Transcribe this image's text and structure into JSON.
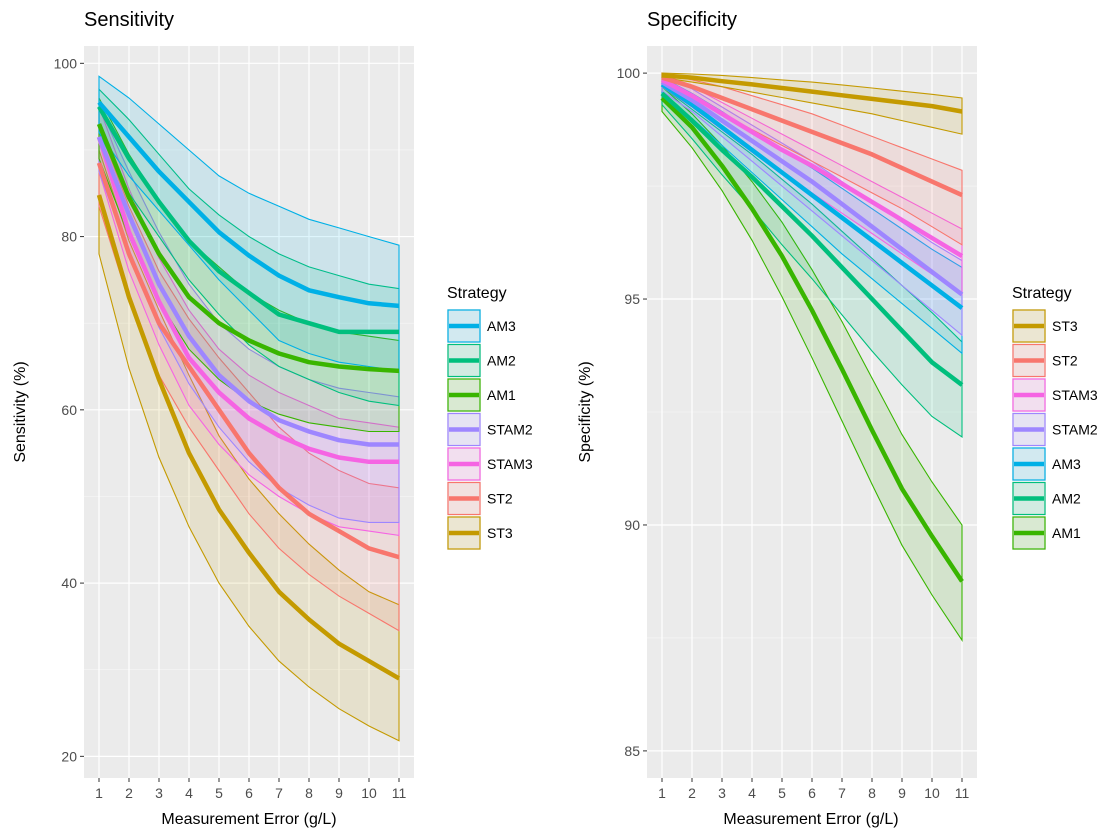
{
  "chart_data": [
    {
      "type": "line",
      "title": "Sensitivity",
      "xlabel": "Measurement Error (g/L)",
      "ylabel": "Sensitivity (%)",
      "x": [
        1,
        2,
        3,
        4,
        5,
        6,
        7,
        8,
        9,
        10,
        11
      ],
      "xlim": [
        0.5,
        11.5
      ],
      "ylim": [
        17.5,
        102
      ],
      "yticks": [
        20,
        40,
        60,
        80,
        100
      ],
      "grid": true,
      "legend_title": "Strategy",
      "legend_position": "right",
      "series": [
        {
          "name": "AM3",
          "color": "#00B0E6",
          "values": [
            95.5,
            91.5,
            87.5,
            84.0,
            80.5,
            77.8,
            75.5,
            73.8,
            73.0,
            72.3,
            72.0
          ],
          "lower": [
            92.0,
            87.0,
            83.0,
            79.0,
            75.0,
            71.5,
            68.0,
            66.5,
            65.5,
            65.0,
            64.5
          ],
          "upper": [
            98.5,
            96.0,
            93.0,
            90.0,
            87.0,
            85.0,
            83.5,
            82.0,
            81.0,
            80.0,
            79.0
          ]
        },
        {
          "name": "AM2",
          "color": "#00BF7D",
          "values": [
            95.0,
            89.0,
            84.0,
            79.5,
            76.0,
            73.5,
            71.0,
            70.0,
            69.0,
            69.0,
            69.0
          ],
          "lower": [
            92.0,
            85.0,
            80.0,
            75.0,
            71.0,
            67.5,
            65.0,
            63.5,
            62.0,
            61.0,
            60.5
          ],
          "upper": [
            97.0,
            93.5,
            89.5,
            85.5,
            82.5,
            80.0,
            78.0,
            76.5,
            75.5,
            74.5,
            74.0
          ]
        },
        {
          "name": "AM1",
          "color": "#39B500",
          "values": [
            93.0,
            84.5,
            78.0,
            73.0,
            70.0,
            68.0,
            66.5,
            65.5,
            65.0,
            64.7,
            64.5
          ],
          "lower": [
            89.0,
            80.0,
            72.5,
            67.0,
            63.5,
            61.0,
            59.5,
            58.5,
            58.0,
            57.5,
            57.5
          ],
          "upper": [
            96.0,
            89.5,
            84.0,
            79.5,
            76.5,
            73.5,
            71.5,
            70.0,
            69.0,
            68.5,
            68.0
          ]
        },
        {
          "name": "STAM2",
          "color": "#9E86FF",
          "values": [
            91.5,
            82.5,
            74.5,
            68.5,
            64.0,
            61.0,
            58.8,
            57.5,
            56.5,
            56.0,
            56.0
          ],
          "lower": [
            87.5,
            78.0,
            69.5,
            63.0,
            58.0,
            54.0,
            51.0,
            49.0,
            47.5,
            47.0,
            47.0
          ],
          "upper": [
            95.0,
            87.5,
            80.5,
            74.5,
            70.0,
            67.0,
            65.0,
            63.5,
            62.5,
            62.0,
            61.5
          ]
        },
        {
          "name": "STAM3",
          "color": "#F564E3",
          "values": [
            91.5,
            80.5,
            72.5,
            66.0,
            62.0,
            59.0,
            57.0,
            55.5,
            54.5,
            54.0,
            54.0
          ],
          "lower": [
            87.5,
            76.0,
            67.5,
            60.5,
            56.0,
            52.5,
            50.0,
            48.0,
            46.5,
            46.0,
            45.5
          ],
          "upper": [
            95.0,
            85.5,
            77.5,
            71.5,
            67.0,
            64.0,
            62.0,
            60.5,
            59.0,
            58.5,
            58.0
          ]
        },
        {
          "name": "ST2",
          "color": "#F8766D",
          "values": [
            88.5,
            78.0,
            70.0,
            65.0,
            60.0,
            55.0,
            51.0,
            48.0,
            46.0,
            44.0,
            43.0
          ],
          "lower": [
            83.5,
            72.5,
            64.0,
            58.0,
            53.0,
            48.0,
            44.0,
            41.0,
            38.5,
            36.5,
            34.5
          ],
          "upper": [
            92.5,
            83.5,
            76.0,
            70.5,
            66.0,
            62.0,
            58.0,
            55.0,
            53.0,
            51.5,
            51.0
          ]
        },
        {
          "name": "ST3",
          "color": "#C49A00",
          "values": [
            84.8,
            73.0,
            63.5,
            55.0,
            48.5,
            43.5,
            39.0,
            35.8,
            33.0,
            31.0,
            29.0
          ],
          "lower": [
            78.0,
            64.8,
            54.5,
            46.5,
            40.0,
            35.0,
            31.0,
            28.0,
            25.5,
            23.5,
            21.8
          ],
          "upper": [
            90.0,
            79.5,
            71.5,
            64.0,
            57.0,
            52.0,
            48.0,
            44.5,
            41.5,
            39.0,
            37.5
          ]
        }
      ]
    },
    {
      "type": "line",
      "title": "Specificity",
      "xlabel": "Measurement Error (g/L)",
      "ylabel": "Specificity (%)",
      "x": [
        1,
        2,
        3,
        4,
        5,
        6,
        7,
        8,
        9,
        10,
        11
      ],
      "xlim": [
        0.5,
        11.5
      ],
      "ylim": [
        84.4,
        100.6
      ],
      "yticks": [
        85,
        90,
        95,
        100
      ],
      "grid": true,
      "legend_title": "Strategy",
      "legend_position": "right",
      "series": [
        {
          "name": "ST3",
          "color": "#C49A00",
          "values": [
            99.95,
            99.9,
            99.82,
            99.75,
            99.67,
            99.59,
            99.51,
            99.43,
            99.35,
            99.27,
            99.15
          ],
          "lower": [
            99.9,
            99.8,
            99.7,
            99.58,
            99.46,
            99.34,
            99.22,
            99.1,
            98.95,
            98.8,
            98.65
          ],
          "upper": [
            100.0,
            99.98,
            99.95,
            99.9,
            99.85,
            99.8,
            99.74,
            99.67,
            99.6,
            99.53,
            99.45
          ]
        },
        {
          "name": "ST2",
          "color": "#F8766D",
          "values": [
            99.9,
            99.7,
            99.45,
            99.2,
            98.95,
            98.7,
            98.45,
            98.2,
            97.9,
            97.6,
            97.3
          ],
          "lower": [
            99.75,
            99.45,
            99.1,
            98.75,
            98.4,
            98.05,
            97.7,
            97.35,
            97.0,
            96.6,
            96.2
          ],
          "upper": [
            100.0,
            99.85,
            99.7,
            99.5,
            99.3,
            99.1,
            98.85,
            98.6,
            98.35,
            98.1,
            97.85
          ]
        },
        {
          "name": "STAM3",
          "color": "#F564E3",
          "values": [
            99.85,
            99.5,
            99.1,
            98.7,
            98.3,
            97.95,
            97.55,
            97.15,
            96.75,
            96.35,
            95.95
          ],
          "lower": [
            99.7,
            99.25,
            98.75,
            98.25,
            97.8,
            97.35,
            96.9,
            96.45,
            96.0,
            95.55,
            95.1
          ],
          "upper": [
            100.0,
            99.7,
            99.35,
            99.0,
            98.65,
            98.3,
            97.95,
            97.6,
            97.25,
            96.9,
            96.55
          ]
        },
        {
          "name": "STAM2",
          "color": "#9E86FF",
          "values": [
            99.8,
            99.4,
            98.95,
            98.5,
            98.05,
            97.6,
            97.1,
            96.6,
            96.1,
            95.6,
            95.1
          ],
          "lower": [
            99.6,
            99.15,
            98.6,
            98.05,
            97.5,
            96.95,
            96.4,
            95.85,
            95.3,
            94.75,
            94.2
          ],
          "upper": [
            99.95,
            99.65,
            99.25,
            98.85,
            98.45,
            98.05,
            97.6,
            97.15,
            96.7,
            96.25,
            95.85
          ]
        },
        {
          "name": "AM3",
          "color": "#00B0E6",
          "values": [
            99.75,
            99.3,
            98.8,
            98.3,
            97.8,
            97.3,
            96.8,
            96.3,
            95.8,
            95.3,
            94.8
          ],
          "lower": [
            99.55,
            99.0,
            98.4,
            97.8,
            97.2,
            96.6,
            96.0,
            95.45,
            94.9,
            94.35,
            93.8
          ],
          "upper": [
            99.9,
            99.55,
            99.15,
            98.7,
            98.3,
            97.9,
            97.45,
            97.0,
            96.55,
            96.1,
            95.7
          ]
        },
        {
          "name": "AM2",
          "color": "#00BF7D",
          "values": [
            99.55,
            98.95,
            98.3,
            97.7,
            97.05,
            96.4,
            95.7,
            95.0,
            94.3,
            93.6,
            93.1
          ],
          "lower": [
            99.3,
            98.55,
            97.75,
            97.0,
            96.2,
            95.45,
            94.65,
            93.85,
            93.1,
            92.4,
            91.95
          ],
          "upper": [
            99.7,
            99.2,
            98.7,
            98.2,
            97.65,
            97.1,
            96.5,
            95.9,
            95.3,
            94.7,
            94.05
          ]
        },
        {
          "name": "AM1",
          "color": "#39B500",
          "values": [
            99.45,
            98.8,
            97.95,
            97.0,
            95.95,
            94.75,
            93.45,
            92.1,
            90.8,
            89.75,
            88.75
          ],
          "lower": [
            99.15,
            98.35,
            97.4,
            96.3,
            95.05,
            93.7,
            92.3,
            90.9,
            89.55,
            88.45,
            87.45
          ],
          "upper": [
            99.7,
            99.1,
            98.4,
            97.6,
            96.7,
            95.65,
            94.5,
            93.25,
            92.0,
            90.95,
            90.0
          ]
        }
      ]
    }
  ]
}
